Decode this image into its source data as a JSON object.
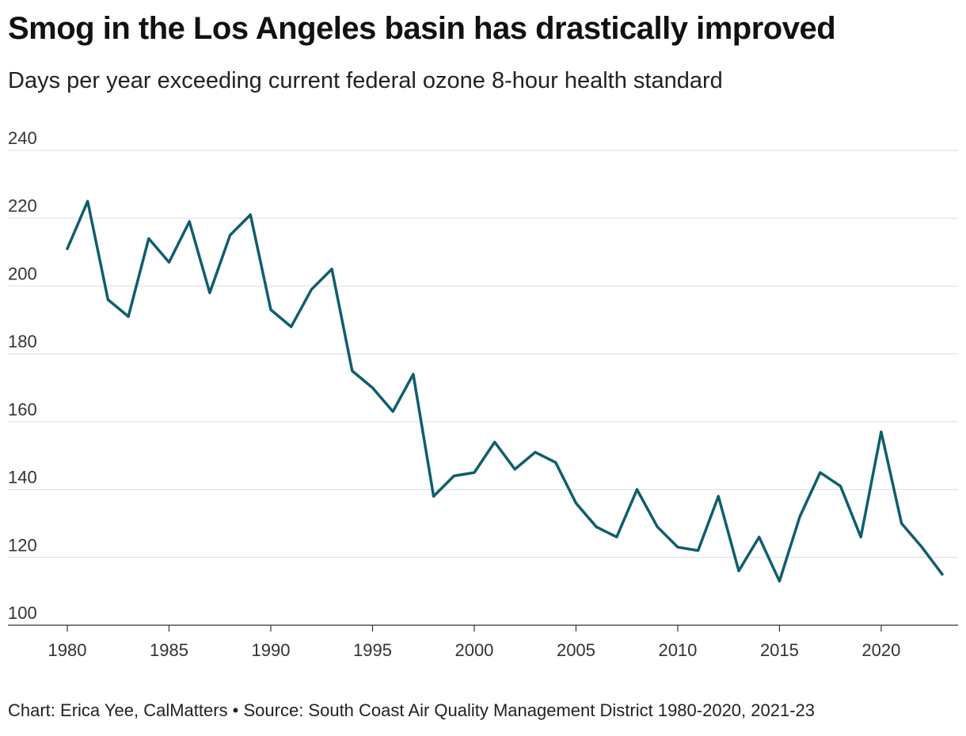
{
  "title": "Smog in the Los Angeles basin has drastically improved",
  "subtitle": "Days per year exceeding current federal ozone 8-hour health standard",
  "credit": "Chart: Erica Yee, CalMatters • Source: South Coast Air Quality Management District 1980-2020, 2021-23",
  "colors": {
    "line": "#0f5e6e",
    "grid": "#dedede",
    "axis": "#333333"
  },
  "chart_data": {
    "type": "line",
    "title": "Smog in the Los Angeles basin has drastically improved",
    "subtitle": "Days per year exceeding current federal ozone 8-hour health standard",
    "xlabel": "",
    "ylabel": "",
    "xlim": [
      1980,
      2023
    ],
    "ylim": [
      100,
      240
    ],
    "yticks": [
      240,
      220,
      200,
      180,
      160,
      140,
      120,
      100
    ],
    "xticks": [
      1980,
      1985,
      1990,
      1995,
      2000,
      2005,
      2010,
      2015,
      2020
    ],
    "grid": true,
    "series": [
      {
        "x": [
          1980,
          1981,
          1982,
          1983,
          1984,
          1985,
          1986,
          1987,
          1988,
          1989,
          1990,
          1991,
          1992,
          1993,
          1994,
          1995,
          1996,
          1997,
          1998,
          1999,
          2000,
          2001,
          2002,
          2003,
          2004,
          2005,
          2006,
          2007,
          2008,
          2009,
          2010,
          2011,
          2012,
          2013,
          2014,
          2015,
          2016,
          2017,
          2018,
          2019,
          2020,
          2021,
          2022,
          2023
        ],
        "values": [
          211,
          225,
          196,
          191,
          214,
          207,
          219,
          198,
          215,
          221,
          193,
          188,
          199,
          205,
          175,
          170,
          163,
          174,
          138,
          144,
          145,
          154,
          146,
          151,
          148,
          136,
          129,
          126,
          140,
          129,
          123,
          122,
          138,
          116,
          126,
          113,
          132,
          145,
          141,
          126,
          157,
          130,
          123,
          115
        ]
      }
    ]
  }
}
